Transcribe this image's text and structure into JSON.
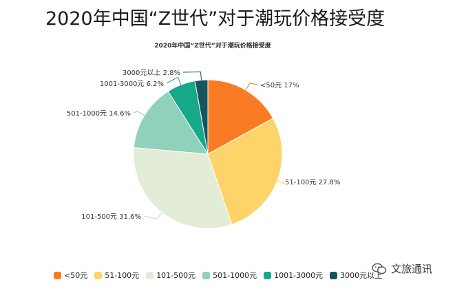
{
  "page": {
    "title": "2020年中国“Z世代”对于潮玩价格接受度"
  },
  "watermark": {
    "text": "文旅通讯"
  },
  "chart_data": {
    "type": "pie",
    "title": "2020年中国“Z世代”对于潮玩价格接受度",
    "slices": [
      {
        "name": "<50元",
        "value": 17,
        "label": "<50元 17%",
        "color": "#f97c24"
      },
      {
        "name": "51-100元",
        "value": 27.8,
        "label": "51-100元 27.8%",
        "color": "#fdd36a"
      },
      {
        "name": "101-500元",
        "value": 31.6,
        "label": "101-500元 31.6%",
        "color": "#e3ecd6"
      },
      {
        "name": "501-1000元",
        "value": 14.6,
        "label": "501-1000元 14.6%",
        "color": "#8fd1bb"
      },
      {
        "name": "1001-3000元",
        "value": 6.2,
        "label": "1001-3000元 6.2%",
        "color": "#17a789"
      },
      {
        "name": "3000元以上",
        "value": 2.8,
        "label": "3000元以上 2.8%",
        "color": "#17555e"
      }
    ],
    "legend_position": "bottom"
  }
}
